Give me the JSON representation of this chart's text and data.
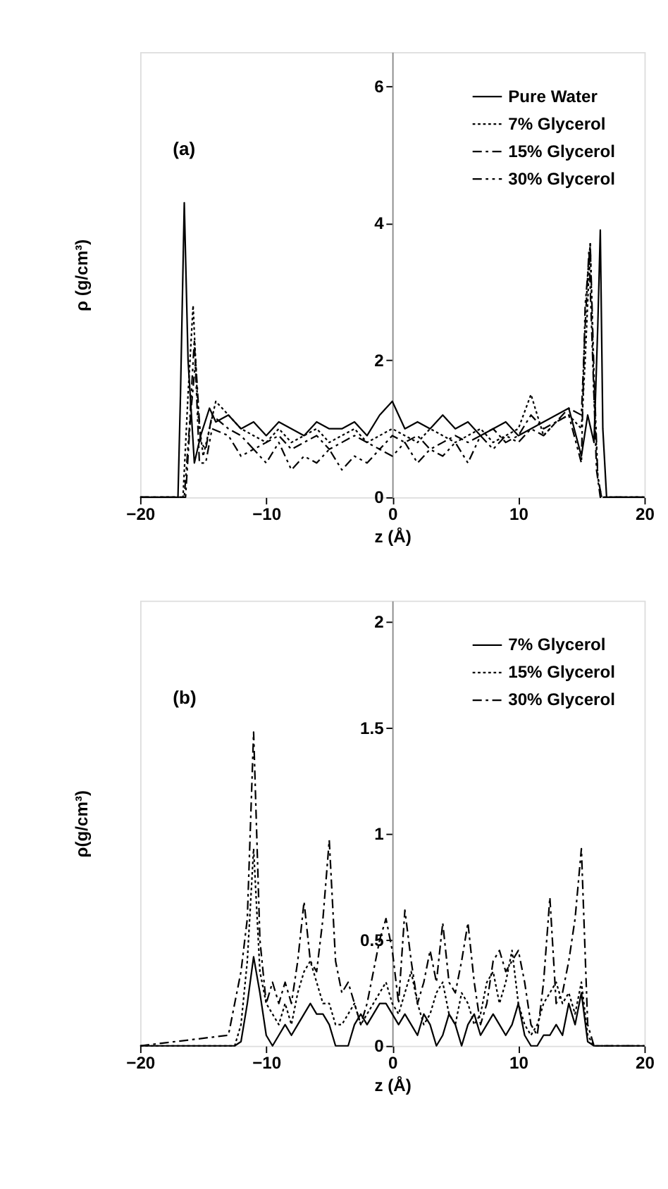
{
  "chart_data": [
    {
      "type": "line",
      "xlabel": "z (Å)",
      "ylabel": "ρ (g/cm³)",
      "annotations": [
        "(a)"
      ],
      "xlim": [
        -20,
        20
      ],
      "ylim": [
        0,
        6.5
      ],
      "xticks": [
        -20,
        -10,
        0,
        10,
        20
      ],
      "yticks": [
        0,
        2,
        4,
        6
      ],
      "grid": false,
      "legend": "top right",
      "marker": "none",
      "series": [
        {
          "name": "Pure Water",
          "color": "#000000",
          "line_style": "solid",
          "x": [
            -20,
            -17,
            -16.8,
            -16.5,
            -16.2,
            -15.7,
            -15.2,
            -14.5,
            -14,
            -13,
            -12,
            -11,
            -10,
            -9,
            -8,
            -7,
            -6,
            -5,
            -4,
            -3,
            -2,
            -1,
            0,
            1,
            2,
            3,
            4,
            5,
            6,
            7,
            8,
            9,
            10,
            11,
            12,
            13,
            14,
            15,
            15.5,
            16,
            16.3,
            16.5,
            16.7,
            17,
            20
          ],
          "values": [
            0,
            0,
            1.5,
            4.3,
            2.0,
            0.5,
            0.9,
            1.3,
            1.1,
            1.2,
            1.0,
            1.1,
            0.9,
            1.1,
            1.0,
            0.9,
            1.1,
            1.0,
            1.0,
            1.1,
            0.9,
            1.2,
            1.4,
            1.0,
            1.1,
            1.0,
            1.2,
            1.0,
            1.1,
            0.9,
            1.0,
            1.1,
            0.9,
            1.0,
            1.1,
            1.2,
            1.3,
            0.6,
            1.2,
            0.8,
            2.5,
            3.9,
            1.0,
            0,
            0
          ]
        },
        {
          "name": "7% Glycerol",
          "color": "#000000",
          "line_style": "dotted",
          "x": [
            -20,
            -16.6,
            -16.2,
            -15.8,
            -15.4,
            -15,
            -14.5,
            -14,
            -13,
            -12,
            -11,
            -10,
            -9,
            -8,
            -7,
            -6,
            -5,
            -4,
            -3,
            -2,
            -1,
            0,
            1,
            2,
            3,
            4,
            5,
            6,
            7,
            8,
            9,
            10,
            11,
            12,
            13,
            14,
            15,
            15.3,
            15.7,
            16,
            16.3,
            16.6,
            20
          ],
          "values": [
            0,
            0,
            1.5,
            2.8,
            1.2,
            0.6,
            1.0,
            1.4,
            1.2,
            1.0,
            0.9,
            0.8,
            1.0,
            0.8,
            0.9,
            1.0,
            0.8,
            0.9,
            1.0,
            0.8,
            0.9,
            1.0,
            0.9,
            0.8,
            1.0,
            0.9,
            0.8,
            0.9,
            1.0,
            0.8,
            0.9,
            1.0,
            1.5,
            0.9,
            1.1,
            1.2,
            1.0,
            2.0,
            3.7,
            1.5,
            0.3,
            0,
            0
          ]
        },
        {
          "name": "15% Glycerol",
          "color": "#000000",
          "line_style": "dashdot",
          "x": [
            -20,
            -16.4,
            -16,
            -15.6,
            -15.2,
            -14.8,
            -14.3,
            -13,
            -12,
            -11,
            -10,
            -9,
            -8,
            -7,
            -6,
            -5,
            -4,
            -3,
            -2,
            -1,
            0,
            1,
            2,
            3,
            4,
            5,
            6,
            7,
            8,
            9,
            10,
            11,
            12,
            13,
            14,
            15,
            15.3,
            15.6,
            15.9,
            16.2,
            16.5,
            20
          ],
          "values": [
            0,
            0,
            1.2,
            2.0,
            0.8,
            0.7,
            1.2,
            1.0,
            0.9,
            0.7,
            0.8,
            0.9,
            0.7,
            0.8,
            0.9,
            0.7,
            0.8,
            0.9,
            0.8,
            0.7,
            0.9,
            0.8,
            0.9,
            0.7,
            0.8,
            0.9,
            0.8,
            0.9,
            1.0,
            0.8,
            0.9,
            1.2,
            1.0,
            1.1,
            1.3,
            1.2,
            2.5,
            3.6,
            2.0,
            0.4,
            0,
            0
          ]
        },
        {
          "name": "30% Glycerol",
          "color": "#000000",
          "line_style": "dashdotdot",
          "x": [
            -20,
            -16.5,
            -16.1,
            -15.7,
            -15.3,
            -14.8,
            -14.3,
            -13,
            -12,
            -11,
            -10,
            -9,
            -8,
            -7,
            -6,
            -5,
            -4,
            -3,
            -2,
            -1,
            0,
            1,
            2,
            3,
            4,
            5,
            6,
            7,
            8,
            9,
            10,
            11,
            12,
            13,
            14,
            15,
            15.3,
            15.7,
            16,
            16.3,
            16.6,
            20
          ],
          "values": [
            0,
            0,
            1.0,
            2.3,
            0.5,
            0.5,
            1.0,
            0.9,
            0.6,
            0.7,
            0.5,
            0.8,
            0.4,
            0.6,
            0.5,
            0.7,
            0.4,
            0.6,
            0.5,
            0.7,
            0.6,
            0.8,
            0.5,
            0.7,
            0.6,
            0.8,
            0.5,
            0.9,
            0.7,
            0.9,
            0.8,
            1.0,
            0.9,
            1.1,
            1.2,
            0.5,
            2.8,
            3.7,
            1.8,
            0.3,
            0,
            0
          ]
        }
      ]
    },
    {
      "type": "line",
      "xlabel": "z (Å)",
      "ylabel": "ρ(g/cm³)",
      "annotations": [
        "(b)"
      ],
      "xlim": [
        -20,
        20
      ],
      "ylim": [
        0,
        2.1
      ],
      "xticks": [
        -20,
        -10,
        0,
        10,
        20
      ],
      "yticks": [
        0,
        0.5,
        1,
        1.5,
        2
      ],
      "grid": false,
      "legend": "top right",
      "marker": "none",
      "x": [
        -20,
        -13,
        -12.5,
        -12,
        -11.5,
        -11,
        -10.5,
        -10,
        -9.5,
        -9,
        -8.5,
        -8,
        -7.5,
        -7,
        -6.5,
        -6,
        -5.5,
        -5,
        -4.5,
        -4,
        -3.5,
        -3,
        -2.5,
        -2,
        -1.5,
        -1,
        -0.5,
        0,
        0.5,
        1,
        1.5,
        2,
        2.5,
        3,
        3.5,
        4,
        4.5,
        5,
        5.5,
        6,
        6.5,
        7,
        7.5,
        8,
        8.5,
        9,
        9.5,
        10,
        10.5,
        11,
        11.5,
        12,
        12.5,
        13,
        13.5,
        14,
        14.5,
        15,
        15.5,
        16,
        20
      ],
      "series": [
        {
          "name": "7% Glycerol",
          "color": "#000000",
          "line_style": "solid",
          "values": [
            0,
            0,
            0,
            0.02,
            0.2,
            0.42,
            0.25,
            0.05,
            0,
            0.05,
            0.1,
            0.05,
            0.1,
            0.15,
            0.2,
            0.15,
            0.15,
            0.1,
            0,
            0,
            0,
            0.1,
            0.15,
            0.1,
            0.15,
            0.2,
            0.2,
            0.15,
            0.1,
            0.15,
            0.1,
            0.05,
            0.15,
            0.1,
            0,
            0.05,
            0.15,
            0.1,
            0,
            0.1,
            0.15,
            0.05,
            0.1,
            0.15,
            0.1,
            0.05,
            0.1,
            0.2,
            0.05,
            0,
            0,
            0.05,
            0.05,
            0.1,
            0.05,
            0.2,
            0.1,
            0.25,
            0.02,
            0,
            0
          ]
        },
        {
          "name": "15% Glycerol",
          "color": "#000000",
          "line_style": "dotted",
          "values": [
            0,
            0,
            0,
            0.1,
            0.4,
            0.93,
            0.35,
            0.2,
            0.15,
            0.1,
            0.2,
            0.1,
            0.25,
            0.35,
            0.4,
            0.3,
            0.2,
            0.2,
            0.1,
            0.1,
            0.15,
            0.2,
            0.1,
            0.15,
            0.2,
            0.25,
            0.3,
            0.2,
            0.15,
            0.25,
            0.35,
            0.2,
            0.1,
            0.15,
            0.25,
            0.3,
            0.15,
            0.1,
            0.25,
            0.2,
            0.1,
            0.15,
            0.3,
            0.35,
            0.2,
            0.3,
            0.45,
            0.2,
            0.1,
            0.05,
            0.1,
            0.2,
            0.25,
            0.3,
            0.2,
            0.25,
            0.15,
            0.3,
            0.05,
            0,
            0
          ]
        },
        {
          "name": "30% Glycerol",
          "color": "#000000",
          "line_style": "dashdot",
          "values": [
            0,
            0.05,
            0.2,
            0.35,
            0.6,
            1.48,
            0.5,
            0.2,
            0.3,
            0.2,
            0.3,
            0.2,
            0.4,
            0.68,
            0.4,
            0.35,
            0.6,
            0.97,
            0.4,
            0.25,
            0.3,
            0.2,
            0.1,
            0.2,
            0.35,
            0.5,
            0.6,
            0.45,
            0.2,
            0.64,
            0.4,
            0.2,
            0.3,
            0.45,
            0.3,
            0.58,
            0.3,
            0.25,
            0.4,
            0.58,
            0.3,
            0.1,
            0.2,
            0.4,
            0.45,
            0.35,
            0.4,
            0.45,
            0.3,
            0.1,
            0.05,
            0.3,
            0.7,
            0.2,
            0.25,
            0.4,
            0.6,
            0.93,
            0.1,
            0,
            0
          ]
        }
      ]
    }
  ]
}
